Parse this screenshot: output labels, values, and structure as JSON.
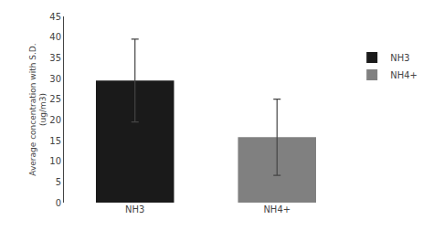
{
  "chart_data": {
    "type": "bar",
    "ylabel": "Average concentration with S.D.\n(ug/m3)",
    "categories": [
      "NH3",
      "NH4+"
    ],
    "values": [
      29.5,
      15.8
    ],
    "errors": [
      10.0,
      9.2
    ],
    "colors": [
      "#1a1a1a",
      "#808080"
    ],
    "ylim": [
      0,
      45
    ],
    "yticks": [
      0,
      5,
      10,
      15,
      20,
      25,
      30,
      35,
      40,
      45
    ],
    "grid": false,
    "legend": "right"
  }
}
